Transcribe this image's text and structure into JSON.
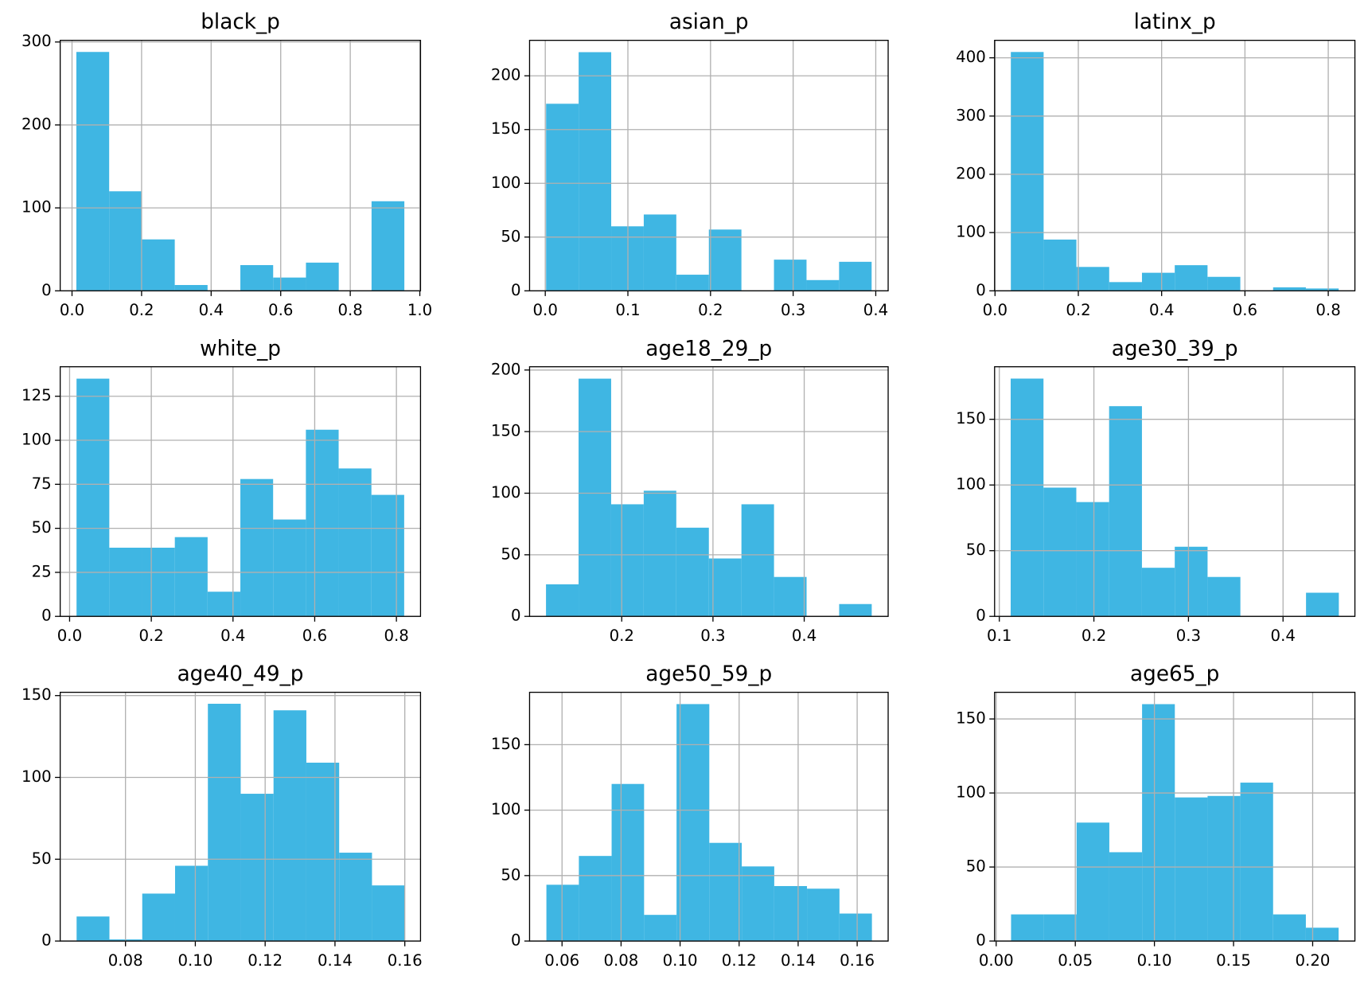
{
  "chart_data": [
    {
      "type": "histogram",
      "title": "black_p",
      "color": "#3fb6e3",
      "grid": true,
      "bins": [
        0.0125,
        0.1068,
        0.2011,
        0.2954,
        0.3897,
        0.484,
        0.5783,
        0.6726,
        0.7669,
        0.8612,
        0.9555
      ],
      "counts": [
        288,
        120,
        62,
        7,
        0,
        31,
        16,
        34,
        0,
        108
      ],
      "xlim": [
        -0.034,
        1.002
      ],
      "ylim": [
        0,
        302
      ],
      "xticks": [
        {
          "value": 0,
          "label": "0.0"
        },
        0.2,
        0.4,
        0.6,
        0.8,
        {
          "value": 1,
          "label": "1.0"
        }
      ],
      "yticks": [
        0,
        100,
        200,
        300
      ]
    },
    {
      "type": "histogram",
      "title": "asian_p",
      "color": "#3fb6e3",
      "grid": true,
      "bins": [
        0.001,
        0.0404,
        0.0798,
        0.1192,
        0.1586,
        0.198,
        0.2374,
        0.2768,
        0.3162,
        0.3556,
        0.395
      ],
      "counts": [
        174,
        222,
        60,
        71,
        15,
        57,
        0,
        29,
        10,
        27
      ],
      "xlim": [
        -0.019,
        0.415
      ],
      "ylim": [
        0,
        233
      ],
      "xticks": [
        {
          "value": 0,
          "label": "0.0"
        },
        0.1,
        0.2,
        0.3,
        0.4
      ],
      "yticks": [
        0,
        50,
        100,
        150,
        200
      ]
    },
    {
      "type": "histogram",
      "title": "latinx_p",
      "color": "#3fb6e3",
      "grid": true,
      "bins": [
        0.038,
        0.1167,
        0.1954,
        0.2741,
        0.3528,
        0.4315,
        0.5102,
        0.5889,
        0.6676,
        0.7463,
        0.825
      ],
      "counts": [
        410,
        88,
        41,
        15,
        31,
        44,
        24,
        0,
        6,
        4
      ],
      "xlim": [
        -0.001,
        0.864
      ],
      "ylim": [
        0,
        430
      ],
      "xticks": [
        {
          "value": 0,
          "label": "0.0"
        },
        0.2,
        0.4,
        0.6,
        0.8
      ],
      "yticks": [
        0,
        100,
        200,
        300,
        400
      ]
    },
    {
      "type": "histogram",
      "title": "white_p",
      "color": "#3fb6e3",
      "grid": true,
      "bins": [
        0.017,
        0.0972,
        0.1774,
        0.2576,
        0.3378,
        0.418,
        0.4982,
        0.5784,
        0.6586,
        0.7388,
        0.819
      ],
      "counts": [
        135,
        39,
        39,
        45,
        14,
        78,
        55,
        106,
        84,
        69
      ],
      "xlim": [
        -0.023,
        0.859
      ],
      "ylim": [
        0,
        141.75
      ],
      "xticks": [
        {
          "value": 0,
          "label": "0.0"
        },
        0.2,
        0.4,
        0.6,
        0.8
      ],
      "yticks": [
        0,
        25,
        50,
        75,
        100,
        125
      ]
    },
    {
      "type": "histogram",
      "title": "age18_29_p",
      "color": "#3fb6e3",
      "grid": true,
      "bins": [
        0.117,
        0.1527,
        0.1884,
        0.2241,
        0.2598,
        0.2955,
        0.3312,
        0.3669,
        0.4026,
        0.4383,
        0.474
      ],
      "counts": [
        26,
        193,
        91,
        102,
        72,
        47,
        91,
        32,
        0,
        10
      ],
      "xlim": [
        0.099,
        0.492
      ],
      "ylim": [
        0,
        202.65
      ],
      "xticks": [
        0.2,
        0.3,
        0.4
      ],
      "yticks": [
        0,
        50,
        100,
        150,
        200
      ]
    },
    {
      "type": "histogram",
      "title": "age30_39_p",
      "color": "#3fb6e3",
      "grid": true,
      "bins": [
        0.112,
        0.1467,
        0.1814,
        0.2161,
        0.2508,
        0.2855,
        0.3202,
        0.3549,
        0.3896,
        0.4243,
        0.459
      ],
      "counts": [
        181,
        98,
        87,
        160,
        37,
        53,
        30,
        0,
        0,
        18
      ],
      "xlim": [
        0.095,
        0.476
      ],
      "ylim": [
        0,
        190
      ],
      "xticks": [
        0.1,
        0.2,
        0.3,
        0.4
      ],
      "yticks": [
        0,
        50,
        100,
        150
      ]
    },
    {
      "type": "histogram",
      "title": "age40_49_p",
      "color": "#3fb6e3",
      "grid": true,
      "bins": [
        0.066,
        0.0754,
        0.0848,
        0.0942,
        0.1036,
        0.113,
        0.1224,
        0.1318,
        0.1412,
        0.1506,
        0.16
      ],
      "counts": [
        15,
        1,
        29,
        46,
        145,
        90,
        141,
        109,
        54,
        34
      ],
      "xlim": [
        0.0613,
        0.1645
      ],
      "ylim": [
        0,
        152
      ],
      "xticks": [
        0.08,
        {
          "value": 0.1,
          "label": "0.10"
        },
        0.12,
        0.14,
        0.16
      ],
      "yticks": [
        0,
        50,
        100,
        150
      ]
    },
    {
      "type": "histogram",
      "title": "age50_59_p",
      "color": "#3fb6e3",
      "grid": true,
      "bins": [
        0.0547,
        0.0657,
        0.0768,
        0.0878,
        0.0988,
        0.1099,
        0.1209,
        0.1319,
        0.143,
        0.154,
        0.165
      ],
      "counts": [
        43,
        65,
        120,
        20,
        181,
        75,
        57,
        42,
        40,
        21
      ],
      "xlim": [
        0.049,
        0.1705
      ],
      "ylim": [
        0,
        190
      ],
      "xticks": [
        0.06,
        0.08,
        {
          "value": 0.1,
          "label": "0.10"
        },
        0.12,
        0.14,
        0.16
      ],
      "yticks": [
        0,
        50,
        100,
        150
      ]
    },
    {
      "type": "histogram",
      "title": "age65_p",
      "color": "#3fb6e3",
      "grid": true,
      "bins": [
        0.0094,
        0.0301,
        0.0508,
        0.0715,
        0.0922,
        0.1129,
        0.1336,
        0.1543,
        0.175,
        0.1957,
        0.2164
      ],
      "counts": [
        18,
        18,
        80,
        60,
        160,
        97,
        98,
        107,
        18,
        9
      ],
      "xlim": [
        -0.001,
        0.2267
      ],
      "ylim": [
        0,
        168
      ],
      "xticks": [
        {
          "value": 0,
          "label": "0.00"
        },
        0.05,
        {
          "value": 0.1,
          "label": "0.10"
        },
        0.15,
        {
          "value": 0.2,
          "label": "0.20"
        }
      ],
      "yticks": [
        0,
        50,
        100,
        150
      ]
    }
  ]
}
